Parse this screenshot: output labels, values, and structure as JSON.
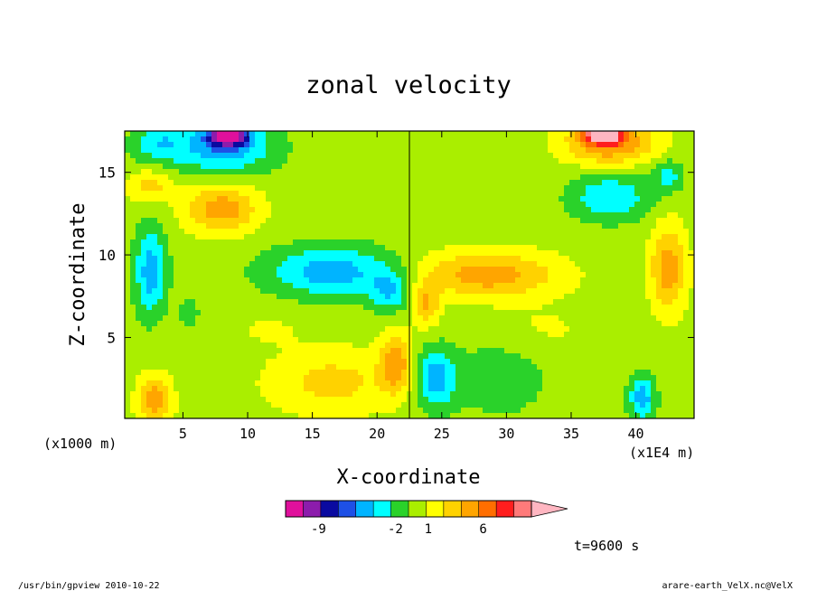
{
  "chart_data": {
    "type": "heatmap",
    "title": "zonal velocity",
    "xlabel": "X-coordinate",
    "ylabel": "Z-coordinate",
    "x_unit_note": "(x1E4 m)",
    "y_unit_note": "(x1000 m)",
    "xlim": [
      0.5,
      44.5
    ],
    "ylim": [
      0.1,
      17.5
    ],
    "xticks": [
      5,
      10,
      15,
      20,
      25,
      30,
      35,
      40
    ],
    "yticks": [
      5,
      10,
      15
    ],
    "time_label": "t=9600 s",
    "colorbar": {
      "colors": [
        "#e0109c",
        "#8c1cac",
        "#0a0aa0",
        "#1e50e6",
        "#00b4ff",
        "#00ffff",
        "#2ad22a",
        "#aaee00",
        "#ffff00",
        "#ffd200",
        "#ffa500",
        "#ff6e00",
        "#ff1e1e",
        "#ff7a7a",
        "#ffb6c1"
      ],
      "tick_labels": [
        "-9",
        "-2",
        "1",
        "6"
      ]
    },
    "field_blobs": [
      {
        "x": 8.0,
        "z": 16.5,
        "sx": 4.0,
        "sz": 1.6,
        "v": -5
      },
      {
        "x": 8.5,
        "z": 17.2,
        "sx": 1.5,
        "sz": 0.6,
        "v": -10
      },
      {
        "x": 3.0,
        "z": 16.8,
        "sx": 2.0,
        "sz": 1.2,
        "v": -3
      },
      {
        "x": 38.0,
        "z": 16.8,
        "sx": 3.5,
        "sz": 1.3,
        "v": 6
      },
      {
        "x": 37.5,
        "z": 17.3,
        "sx": 1.3,
        "sz": 0.5,
        "v": 11
      },
      {
        "x": 8.0,
        "z": 12.8,
        "sx": 2.8,
        "sz": 1.5,
        "v": 5
      },
      {
        "x": 2.5,
        "z": 14.2,
        "sx": 1.8,
        "sz": 1.0,
        "v": 3
      },
      {
        "x": 38.0,
        "z": 13.5,
        "sx": 3.0,
        "sz": 1.4,
        "v": -4
      },
      {
        "x": 42.5,
        "z": 14.8,
        "sx": 1.2,
        "sz": 1.0,
        "v": -3
      },
      {
        "x": 2.5,
        "z": 9.0,
        "sx": 1.2,
        "sz": 2.6,
        "v": -5
      },
      {
        "x": 42.5,
        "z": 9.2,
        "sx": 1.4,
        "sz": 2.6,
        "v": 5
      },
      {
        "x": 5.5,
        "z": 6.5,
        "sx": 0.7,
        "sz": 0.8,
        "v": -2
      },
      {
        "x": 16.5,
        "z": 9.0,
        "sx": 5.0,
        "sz": 1.5,
        "v": -5
      },
      {
        "x": 21.0,
        "z": 7.8,
        "sx": 1.5,
        "sz": 1.2,
        "v": -4
      },
      {
        "x": 28.5,
        "z": 8.8,
        "sx": 5.5,
        "sz": 1.4,
        "v": 5
      },
      {
        "x": 23.8,
        "z": 7.0,
        "sx": 1.0,
        "sz": 1.3,
        "v": 4
      },
      {
        "x": 21.5,
        "z": 3.5,
        "sx": 1.2,
        "sz": 1.8,
        "v": 5
      },
      {
        "x": 24.5,
        "z": 2.5,
        "sx": 1.6,
        "sz": 1.8,
        "v": -5
      },
      {
        "x": 29.5,
        "z": 2.5,
        "sx": 3.5,
        "sz": 2.2,
        "v": -2
      },
      {
        "x": 16.5,
        "z": 2.3,
        "sx": 5.0,
        "sz": 2.0,
        "v": 3
      },
      {
        "x": 2.8,
        "z": 1.2,
        "sx": 1.3,
        "sz": 1.5,
        "v": 5
      },
      {
        "x": 40.5,
        "z": 1.3,
        "sx": 1.0,
        "sz": 1.3,
        "v": -5
      },
      {
        "x": 33.0,
        "z": 5.5,
        "sx": 4.0,
        "sz": 1.5,
        "v": 1
      },
      {
        "x": 11.5,
        "z": 5.5,
        "sx": 3.0,
        "sz": 1.0,
        "v": 1
      }
    ],
    "field_background": 0
  },
  "footer": {
    "left": "/usr/bin/gpview   2010-10-22",
    "right": "arare-earth_VelX.nc@VelX"
  }
}
